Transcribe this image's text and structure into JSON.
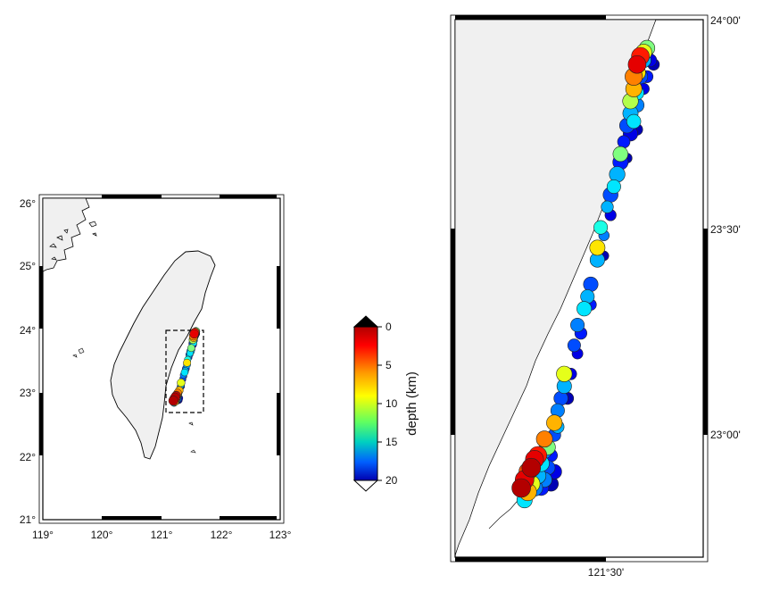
{
  "overview_map": {
    "lon_ticks": [
      "119°",
      "120°",
      "121°",
      "122°",
      "123°"
    ],
    "lat_ticks": [
      "21°",
      "22°",
      "23°",
      "24°",
      "25°",
      "26°"
    ],
    "lon_range": [
      119,
      123
    ],
    "lat_range": [
      21,
      26
    ],
    "land_color": "#f0f0f0",
    "inset_box": {
      "lon": [
        121.1,
        121.7
      ],
      "lat": [
        22.7,
        24.0
      ],
      "style": "dashed"
    }
  },
  "detail_map": {
    "lon_ticks": [
      "121°30'"
    ],
    "lat_ticks": [
      "23°00'",
      "23°30'",
      "24°00'"
    ],
    "land_color": "#f0f0f0"
  },
  "colorbar": {
    "label": "depth (km)",
    "ticks": [
      "0",
      "5",
      "10",
      "15",
      "20"
    ],
    "range": [
      0,
      20
    ],
    "colormap": "jet (red = shallow, blue = deep)",
    "triangles": "both ends"
  },
  "earthquakes": {
    "description_units": "longitude, latitude in degrees; depth in km",
    "events": [
      [
        121.58,
        23.93,
        10,
        4.5
      ],
      [
        121.57,
        23.92,
        8,
        4.6
      ],
      [
        121.56,
        23.91,
        3,
        5.0
      ],
      [
        121.55,
        23.89,
        2,
        5.0
      ],
      [
        121.57,
        23.9,
        14,
        4.2
      ],
      [
        121.59,
        23.9,
        18,
        3.8
      ],
      [
        121.6,
        23.89,
        19,
        3.5
      ],
      [
        121.55,
        23.87,
        7,
        4.8
      ],
      [
        121.54,
        23.86,
        5,
        4.9
      ],
      [
        121.56,
        23.86,
        16,
        4.2
      ],
      [
        121.58,
        23.86,
        17,
        3.6
      ],
      [
        121.54,
        23.83,
        6,
        4.6
      ],
      [
        121.55,
        23.82,
        13,
        4.0
      ],
      [
        121.57,
        23.83,
        18,
        3.4
      ],
      [
        121.53,
        23.8,
        9,
        4.5
      ],
      [
        121.55,
        23.79,
        15,
        4.1
      ],
      [
        121.53,
        23.77,
        14,
        4.4
      ],
      [
        121.54,
        23.75,
        13,
        4.1
      ],
      [
        121.52,
        23.74,
        16,
        4.3
      ],
      [
        121.53,
        23.72,
        18,
        4.2
      ],
      [
        121.55,
        23.73,
        19,
        3.4
      ],
      [
        121.51,
        23.7,
        17,
        3.7
      ],
      [
        121.5,
        23.67,
        10,
        4.3
      ],
      [
        121.5,
        23.65,
        17,
        4.4
      ],
      [
        121.52,
        23.66,
        19,
        3.1
      ],
      [
        121.49,
        23.62,
        14,
        4.5
      ],
      [
        121.48,
        23.59,
        13,
        4.0
      ],
      [
        121.47,
        23.57,
        16,
        4.3
      ],
      [
        121.46,
        23.54,
        14,
        3.6
      ],
      [
        121.47,
        23.52,
        18,
        3.4
      ],
      [
        121.44,
        23.49,
        12,
        4.0
      ],
      [
        121.45,
        23.47,
        15,
        3.2
      ],
      [
        121.43,
        23.44,
        7,
        4.4
      ],
      [
        121.43,
        23.41,
        14,
        4.2
      ],
      [
        121.45,
        23.42,
        19,
        3.0
      ],
      [
        121.41,
        23.35,
        16,
        4.2
      ],
      [
        121.4,
        23.32,
        14,
        4.0
      ],
      [
        121.39,
        23.29,
        13,
        4.2
      ],
      [
        121.41,
        23.3,
        17,
        3.4
      ],
      [
        121.37,
        23.25,
        15,
        4.0
      ],
      [
        121.38,
        23.23,
        17,
        3.6
      ],
      [
        121.36,
        23.2,
        16,
        3.8
      ],
      [
        121.37,
        23.18,
        18,
        3.3
      ],
      [
        121.33,
        23.13,
        8,
        4.5
      ],
      [
        121.35,
        23.13,
        18,
        3.5
      ],
      [
        121.33,
        23.1,
        14,
        4.2
      ],
      [
        121.32,
        23.07,
        16,
        4.1
      ],
      [
        121.34,
        23.07,
        19,
        3.6
      ],
      [
        121.31,
        23.04,
        15,
        4.0
      ],
      [
        121.3,
        23.01,
        6,
        4.5
      ],
      [
        121.31,
        23.0,
        14,
        3.8
      ],
      [
        121.3,
        22.98,
        16,
        3.8
      ],
      [
        121.27,
        22.97,
        5,
        4.6
      ],
      [
        121.28,
        22.95,
        10,
        4.4
      ],
      [
        121.27,
        22.94,
        15,
        4.2
      ],
      [
        121.29,
        22.93,
        17,
        3.8
      ],
      [
        121.25,
        22.93,
        3,
        5.0
      ],
      [
        121.24,
        22.92,
        2,
        5.1
      ],
      [
        121.26,
        22.91,
        13,
        4.6
      ],
      [
        121.28,
        22.9,
        16,
        4.2
      ],
      [
        121.3,
        22.89,
        18,
        4.2
      ],
      [
        121.23,
        22.9,
        1,
        5.2
      ],
      [
        121.22,
        22.89,
        4,
        5.0
      ],
      [
        121.25,
        22.88,
        14,
        4.6
      ],
      [
        121.27,
        22.87,
        15,
        4.3
      ],
      [
        121.29,
        22.86,
        19,
        4.2
      ],
      [
        121.21,
        22.87,
        2,
        5.2
      ],
      [
        121.23,
        22.86,
        8,
        4.9
      ],
      [
        121.24,
        22.85,
        15,
        4.6
      ],
      [
        121.26,
        22.85,
        17,
        4.3
      ],
      [
        121.2,
        22.85,
        1,
        5.2
      ],
      [
        121.22,
        22.84,
        6,
        4.9
      ],
      [
        121.21,
        22.82,
        13,
        4.4
      ]
    ]
  }
}
